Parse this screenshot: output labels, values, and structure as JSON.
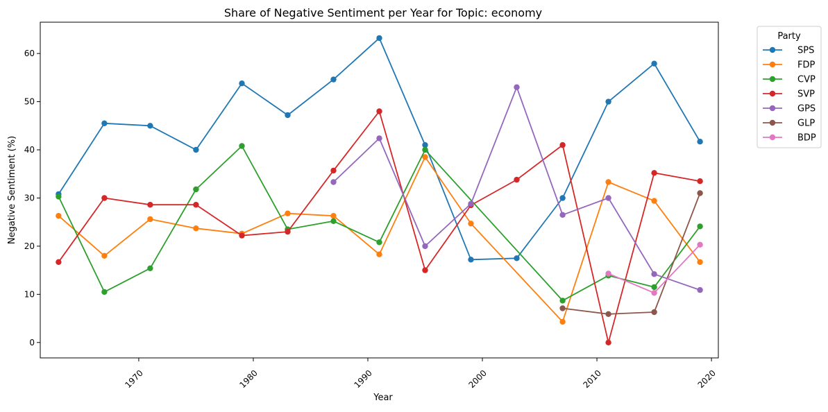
{
  "chart_data": {
    "type": "line",
    "title": "Share of Negative Sentiment per Year for Topic: economy",
    "xlabel": "Year",
    "ylabel": "Negative Sentiment (%)",
    "xlim": [
      1961.4,
      2020.6
    ],
    "ylim": [
      -3.2,
      66.5
    ],
    "x_ticks": [
      1970,
      1980,
      1990,
      2000,
      2010,
      2020
    ],
    "y_ticks": [
      0,
      10,
      20,
      30,
      40,
      50,
      60
    ],
    "grid": false,
    "legend": {
      "title": "Party",
      "placement": "outside-top-right"
    },
    "x": [
      1963,
      1967,
      1971,
      1975,
      1979,
      1983,
      1987,
      1991,
      1995,
      1999,
      2003,
      2007,
      2011,
      2015,
      2019
    ],
    "series": [
      {
        "name": "SPS",
        "color": "#1f77b4",
        "values": [
          30.8,
          45.5,
          45.0,
          40.0,
          53.8,
          47.2,
          54.6,
          63.2,
          41.0,
          17.2,
          17.5,
          30.0,
          50.0,
          57.9,
          41.7
        ]
      },
      {
        "name": "FDP",
        "color": "#ff7f0e",
        "values": [
          26.3,
          18.0,
          25.6,
          23.7,
          22.6,
          26.8,
          26.3,
          18.3,
          38.5,
          24.7,
          null,
          4.3,
          33.3,
          29.4,
          16.7
        ]
      },
      {
        "name": "CVP",
        "color": "#2ca02c",
        "values": [
          30.3,
          10.5,
          15.4,
          31.8,
          40.8,
          23.5,
          25.2,
          20.8,
          40.0,
          null,
          null,
          8.7,
          13.9,
          11.5,
          24.1
        ]
      },
      {
        "name": "SVP",
        "color": "#d62728",
        "values": [
          16.7,
          30.0,
          28.6,
          28.6,
          22.2,
          23.0,
          35.7,
          48.0,
          15.0,
          28.5,
          33.8,
          41.0,
          0.0,
          35.2,
          33.5
        ]
      },
      {
        "name": "GPS",
        "color": "#9467bd",
        "values": [
          null,
          null,
          null,
          null,
          null,
          null,
          33.3,
          42.4,
          20.0,
          28.8,
          53.0,
          26.5,
          30.0,
          14.2,
          10.9
        ]
      },
      {
        "name": "GLP",
        "color": "#8c564b",
        "values": [
          null,
          null,
          null,
          null,
          null,
          null,
          null,
          null,
          null,
          null,
          null,
          7.1,
          5.9,
          6.3,
          31.0
        ]
      },
      {
        "name": "BDP",
        "color": "#e377c2",
        "values": [
          null,
          null,
          null,
          null,
          null,
          null,
          null,
          null,
          null,
          null,
          null,
          null,
          14.3,
          10.3,
          20.3
        ]
      }
    ]
  }
}
